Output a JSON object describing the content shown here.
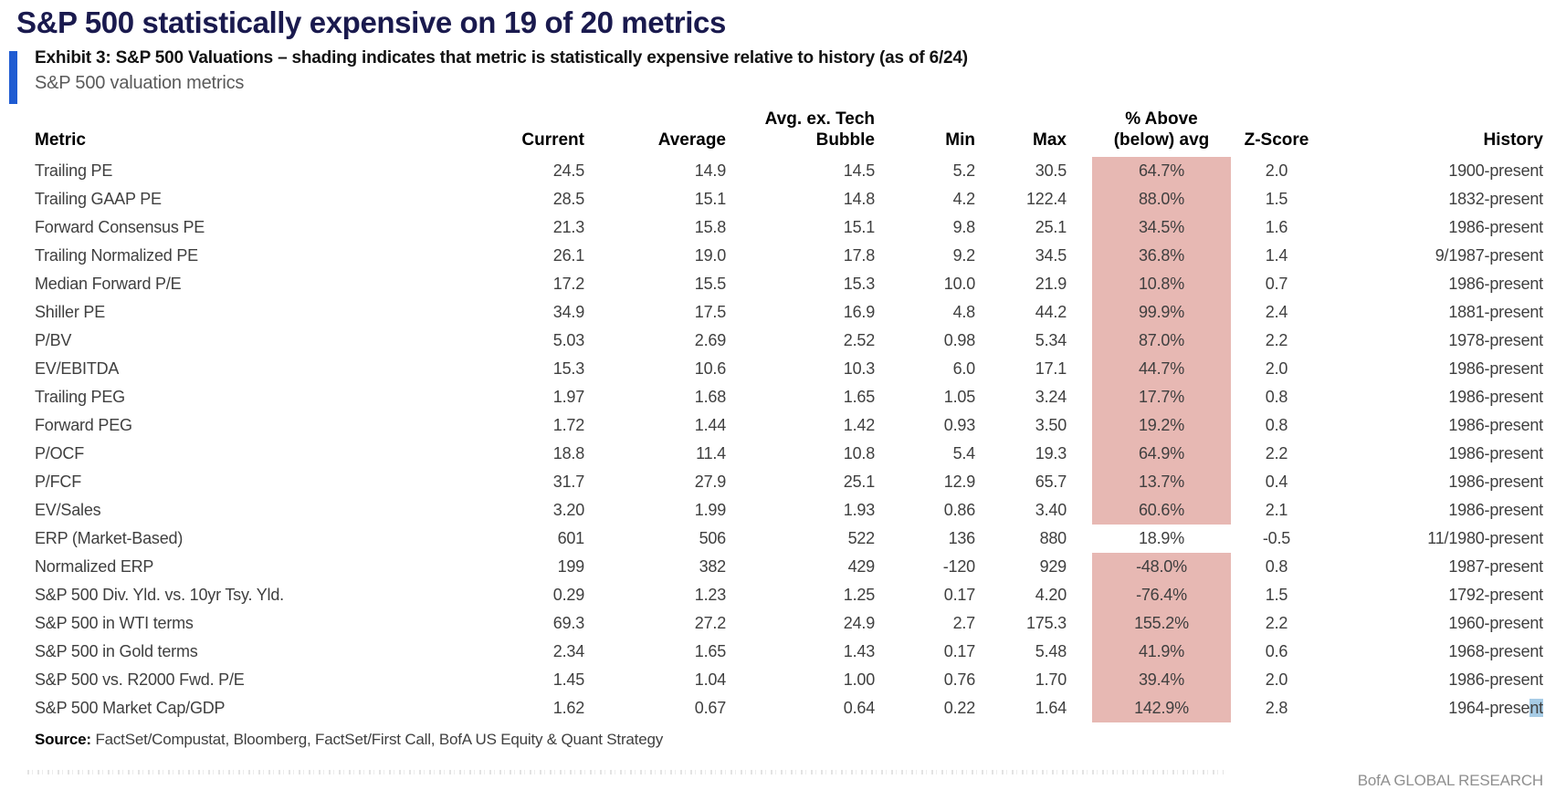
{
  "page": {
    "title": "S&P 500 statistically expensive on 19 of 20 metrics",
    "exhibit_title": "Exhibit 3: S&P 500 Valuations – shading indicates that metric is statistically expensive relative to history (as of 6/24)",
    "subtitle": "S&P 500 valuation metrics",
    "source_label": "Source:",
    "source_text": "FactSet/Compustat, Bloomberg, FactSet/First Call, BofA US Equity & Quant Strategy",
    "footer": "BofA GLOBAL RESEARCH"
  },
  "colors": {
    "title_navy": "#1a1a4e",
    "accent_blue_bar": "#1f5bd2",
    "shading_pink": "#e7b8b3",
    "selection_blue": "#a7cce6"
  },
  "table": {
    "columns": [
      {
        "key": "metric",
        "label_top": "",
        "label": "Metric"
      },
      {
        "key": "current",
        "label_top": "",
        "label": "Current"
      },
      {
        "key": "average",
        "label_top": "",
        "label": "Average"
      },
      {
        "key": "avg_ex_tech",
        "label_top": "Avg. ex. Tech",
        "label": "Bubble"
      },
      {
        "key": "min",
        "label_top": "",
        "label": "Min"
      },
      {
        "key": "max",
        "label_top": "",
        "label": "Max"
      },
      {
        "key": "pct_above_avg",
        "label_top": "% Above",
        "label": "(below) avg"
      },
      {
        "key": "z_score",
        "label_top": "",
        "label": "Z-Score"
      },
      {
        "key": "history",
        "label_top": "",
        "label": "History"
      }
    ],
    "rows": [
      {
        "metric": "Trailing PE",
        "current": "24.5",
        "average": "14.9",
        "avg_ex_tech": "14.5",
        "min": "5.2",
        "max": "30.5",
        "pct_above_avg": "64.7%",
        "z_score": "2.0",
        "history": "1900-present",
        "shaded": true
      },
      {
        "metric": "Trailing GAAP PE",
        "current": "28.5",
        "average": "15.1",
        "avg_ex_tech": "14.8",
        "min": "4.2",
        "max": "122.4",
        "pct_above_avg": "88.0%",
        "z_score": "1.5",
        "history": "1832-present",
        "shaded": true
      },
      {
        "metric": "Forward Consensus PE",
        "current": "21.3",
        "average": "15.8",
        "avg_ex_tech": "15.1",
        "min": "9.8",
        "max": "25.1",
        "pct_above_avg": "34.5%",
        "z_score": "1.6",
        "history": "1986-present",
        "shaded": true
      },
      {
        "metric": "Trailing Normalized PE",
        "current": "26.1",
        "average": "19.0",
        "avg_ex_tech": "17.8",
        "min": "9.2",
        "max": "34.5",
        "pct_above_avg": "36.8%",
        "z_score": "1.4",
        "history": "9/1987-present",
        "shaded": true
      },
      {
        "metric": "Median Forward P/E",
        "current": "17.2",
        "average": "15.5",
        "avg_ex_tech": "15.3",
        "min": "10.0",
        "max": "21.9",
        "pct_above_avg": "10.8%",
        "z_score": "0.7",
        "history": "1986-present",
        "shaded": true
      },
      {
        "metric": "Shiller PE",
        "current": "34.9",
        "average": "17.5",
        "avg_ex_tech": "16.9",
        "min": "4.8",
        "max": "44.2",
        "pct_above_avg": "99.9%",
        "z_score": "2.4",
        "history": "1881-present",
        "shaded": true
      },
      {
        "metric": "P/BV",
        "current": "5.03",
        "average": "2.69",
        "avg_ex_tech": "2.52",
        "min": "0.98",
        "max": "5.34",
        "pct_above_avg": "87.0%",
        "z_score": "2.2",
        "history": "1978-present",
        "shaded": true
      },
      {
        "metric": "EV/EBITDA",
        "current": "15.3",
        "average": "10.6",
        "avg_ex_tech": "10.3",
        "min": "6.0",
        "max": "17.1",
        "pct_above_avg": "44.7%",
        "z_score": "2.0",
        "history": "1986-present",
        "shaded": true
      },
      {
        "metric": "Trailing PEG",
        "current": "1.97",
        "average": "1.68",
        "avg_ex_tech": "1.65",
        "min": "1.05",
        "max": "3.24",
        "pct_above_avg": "17.7%",
        "z_score": "0.8",
        "history": "1986-present",
        "shaded": true
      },
      {
        "metric": "Forward PEG",
        "current": "1.72",
        "average": "1.44",
        "avg_ex_tech": "1.42",
        "min": "0.93",
        "max": "3.50",
        "pct_above_avg": "19.2%",
        "z_score": "0.8",
        "history": "1986-present",
        "shaded": true
      },
      {
        "metric": "P/OCF",
        "current": "18.8",
        "average": "11.4",
        "avg_ex_tech": "10.8",
        "min": "5.4",
        "max": "19.3",
        "pct_above_avg": "64.9%",
        "z_score": "2.2",
        "history": "1986-present",
        "shaded": true
      },
      {
        "metric": "P/FCF",
        "current": "31.7",
        "average": "27.9",
        "avg_ex_tech": "25.1",
        "min": "12.9",
        "max": "65.7",
        "pct_above_avg": "13.7%",
        "z_score": "0.4",
        "history": "1986-present",
        "shaded": true
      },
      {
        "metric": "EV/Sales",
        "current": "3.20",
        "average": "1.99",
        "avg_ex_tech": "1.93",
        "min": "0.86",
        "max": "3.40",
        "pct_above_avg": "60.6%",
        "z_score": "2.1",
        "history": "1986-present",
        "shaded": true
      },
      {
        "metric": "ERP (Market-Based)",
        "current": "601",
        "average": "506",
        "avg_ex_tech": "522",
        "min": "136",
        "max": "880",
        "pct_above_avg": "18.9%",
        "z_score": "-0.5",
        "history": "11/1980-present",
        "shaded": false
      },
      {
        "metric": "Normalized ERP",
        "current": "199",
        "average": "382",
        "avg_ex_tech": "429",
        "min": "-120",
        "max": "929",
        "pct_above_avg": "-48.0%",
        "z_score": "0.8",
        "history": "1987-present",
        "shaded": true
      },
      {
        "metric": "S&P 500 Div. Yld. vs. 10yr Tsy. Yld.",
        "current": "0.29",
        "average": "1.23",
        "avg_ex_tech": "1.25",
        "min": "0.17",
        "max": "4.20",
        "pct_above_avg": "-76.4%",
        "z_score": "1.5",
        "history": "1792-present",
        "shaded": true
      },
      {
        "metric": "S&P 500 in WTI terms",
        "current": "69.3",
        "average": "27.2",
        "avg_ex_tech": "24.9",
        "min": "2.7",
        "max": "175.3",
        "pct_above_avg": "155.2%",
        "z_score": "2.2",
        "history": "1960-present",
        "shaded": true
      },
      {
        "metric": "S&P 500 in Gold terms",
        "current": "2.34",
        "average": "1.65",
        "avg_ex_tech": "1.43",
        "min": "0.17",
        "max": "5.48",
        "pct_above_avg": "41.9%",
        "z_score": "0.6",
        "history": "1968-present",
        "shaded": true
      },
      {
        "metric": "S&P 500 vs. R2000 Fwd. P/E",
        "current": "1.45",
        "average": "1.04",
        "avg_ex_tech": "1.00",
        "min": "0.76",
        "max": "1.70",
        "pct_above_avg": "39.4%",
        "z_score": "2.0",
        "history": "1986-present",
        "shaded": true
      },
      {
        "metric": "S&P 500 Market Cap/GDP",
        "current": "1.62",
        "average": "0.67",
        "avg_ex_tech": "0.64",
        "min": "0.22",
        "max": "1.64",
        "pct_above_avg": "142.9%",
        "z_score": "2.8",
        "history": "1964-present",
        "shaded": true,
        "history_highlight": "nt"
      }
    ]
  }
}
